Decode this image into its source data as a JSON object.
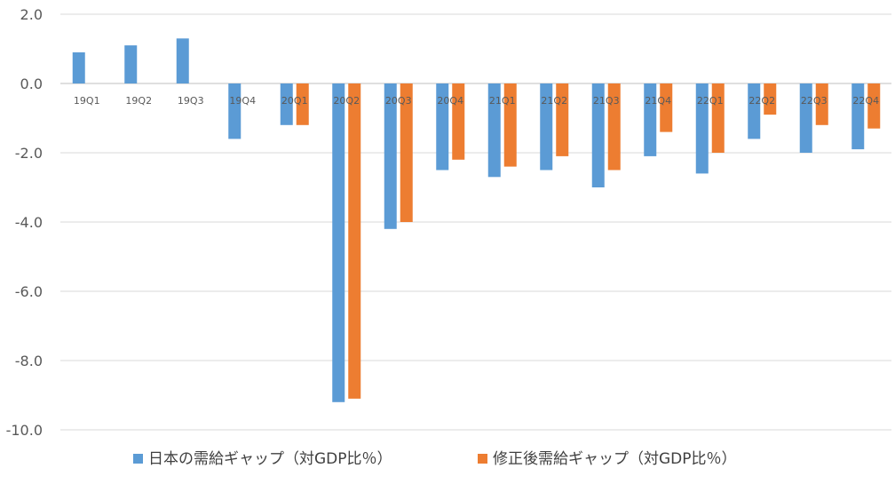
{
  "chart_data": {
    "type": "bar",
    "categories": [
      "19Q1",
      "19Q2",
      "19Q3",
      "19Q4",
      "20Q1",
      "20Q2",
      "20Q3",
      "20Q4",
      "21Q1",
      "21Q2",
      "21Q3",
      "21Q4",
      "22Q1",
      "22Q2",
      "22Q3",
      "22Q4"
    ],
    "series": [
      {
        "name": "日本の需給ギャップ（対GDP比％）",
        "color": "#5B9BD5",
        "values": [
          0.9,
          1.1,
          1.3,
          -1.6,
          -1.2,
          -9.2,
          -4.2,
          -2.5,
          -2.7,
          -2.5,
          -3.0,
          -2.1,
          -2.6,
          -1.6,
          -2.0,
          -1.9
        ]
      },
      {
        "name": "修正後需給ギャップ（対GDP比％）",
        "color": "#ED7D31",
        "values": [
          null,
          null,
          null,
          null,
          -1.2,
          -9.1,
          -4.0,
          -2.2,
          -2.4,
          -2.1,
          -2.5,
          -1.4,
          -2.0,
          -0.9,
          -1.2,
          -1.3
        ]
      }
    ],
    "yticks": [
      "2.0",
      "0.0",
      "-2.0",
      "-4.0",
      "-6.0",
      "-8.0",
      "-10.0"
    ],
    "ylim": [
      -10,
      2
    ],
    "title": "",
    "xlabel": "",
    "ylabel": "",
    "grid": true,
    "legend_position": "bottom"
  }
}
